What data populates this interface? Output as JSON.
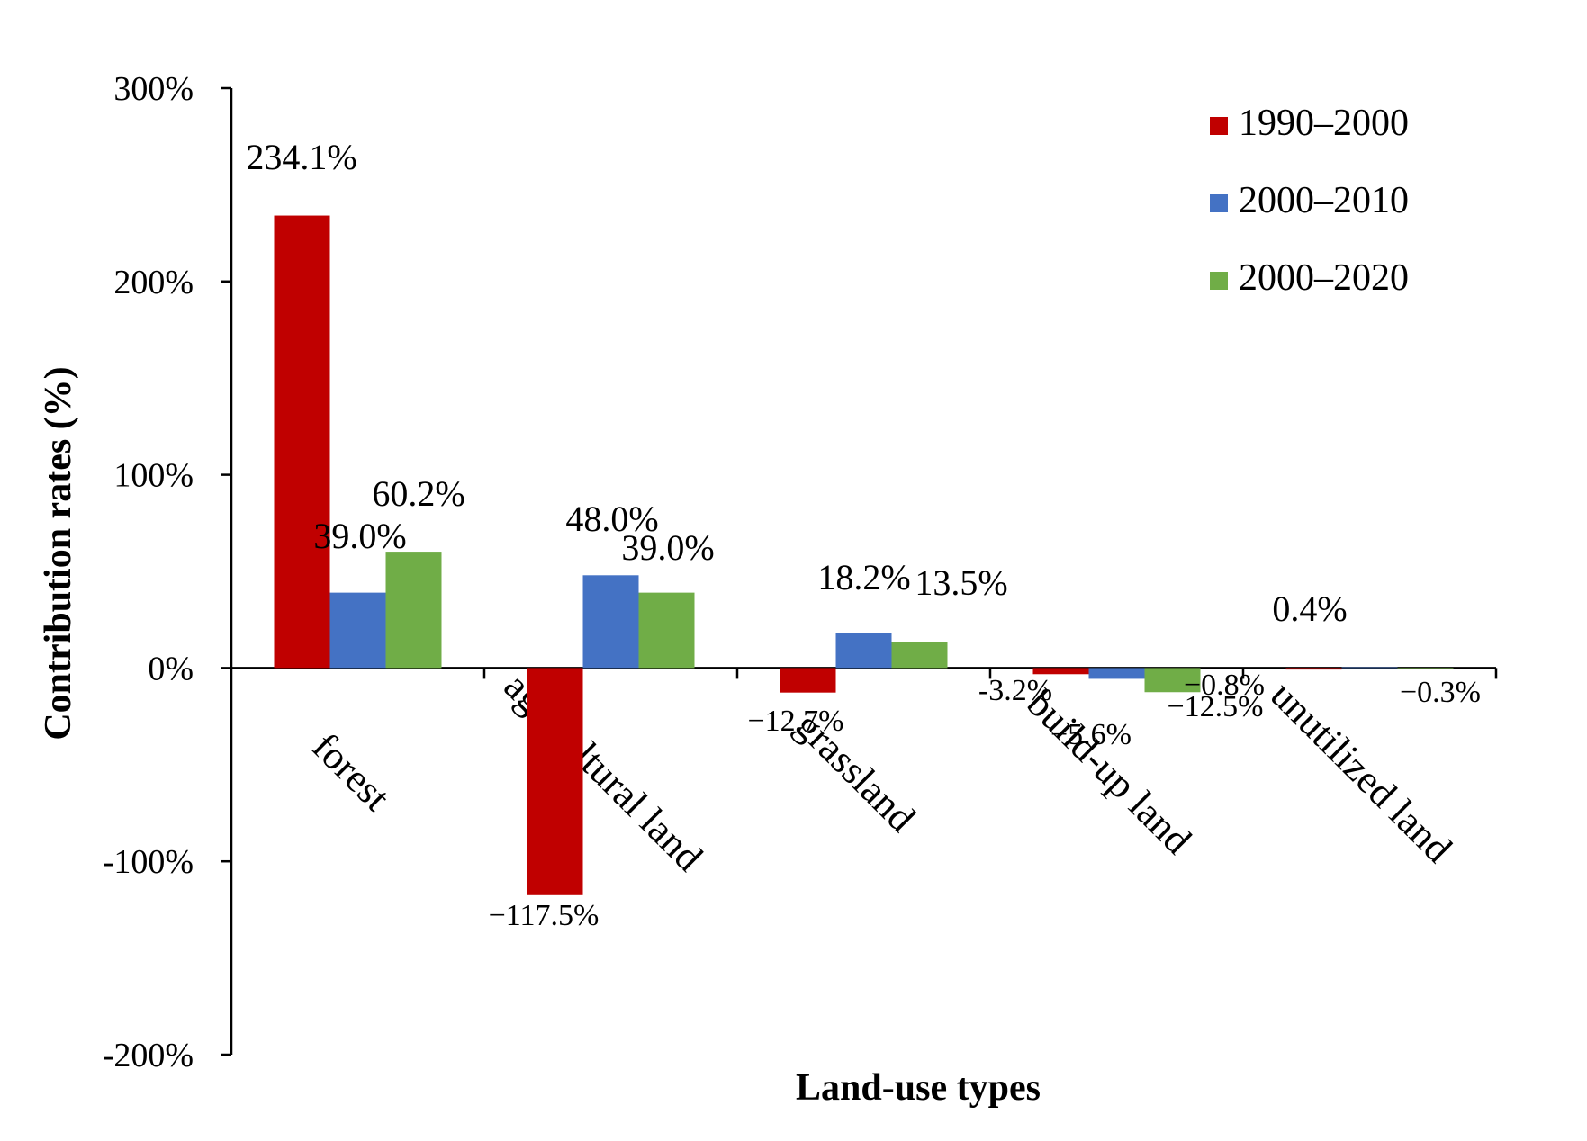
{
  "chart_data": {
    "type": "bar",
    "title": "",
    "xlabel": "Land-use types",
    "ylabel": "Contribution rates (%)",
    "ylim": [
      -200,
      300
    ],
    "ytick_values": [
      -200,
      -100,
      0,
      100,
      200,
      300
    ],
    "ytick_labels": [
      "-200%",
      "-100%",
      "0%",
      "100%",
      "200%",
      "300%"
    ],
    "grid": false,
    "legend_position": "top-right",
    "categories": [
      "forest",
      "agricultural land",
      "grassland",
      "build-up land",
      "unutilized land"
    ],
    "series": [
      {
        "name": "1990–2000",
        "color": "#c00000",
        "values": [
          234.1,
          -117.5,
          -12.7,
          -3.2,
          -0.8
        ],
        "labels": [
          "234.1%",
          "−117.5%",
          "−12.7%",
          "-3.2%",
          "−0.8%"
        ]
      },
      {
        "name": "2000–2010",
        "color": "#4472c4",
        "values": [
          39.0,
          48.0,
          18.2,
          -5.6,
          0.4
        ],
        "labels": [
          "39.0%",
          "48.0%",
          "18.2%",
          "−5.6%",
          "0.4%"
        ]
      },
      {
        "name": "2000–2020",
        "color": "#70ad47",
        "values": [
          60.2,
          39.0,
          13.5,
          -12.5,
          -0.3
        ],
        "labels": [
          "60.2%",
          "39.0%",
          "13.5%",
          "−12.5%",
          "−0.3%"
        ]
      }
    ]
  }
}
